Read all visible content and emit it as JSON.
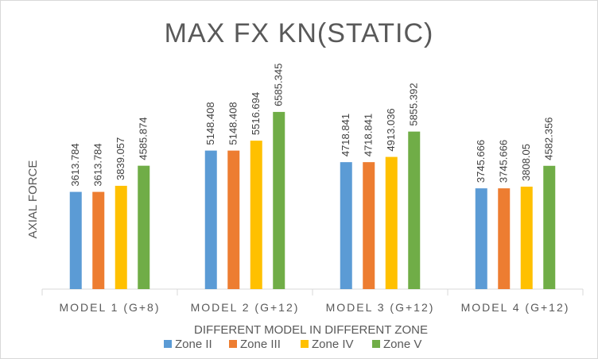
{
  "chart_data": {
    "type": "bar",
    "title": "MAX FX KN(STATIC)",
    "xlabel": "DIFFERENT MODEL IN DIFFERENT ZONE",
    "ylabel": "AXIAL FORCE",
    "categories": [
      "MODEL 1 (G+8)",
      "MODEL 2 (G+12)",
      "MODEL 3 (G+12)",
      "MODEL 4 (G+12)"
    ],
    "series": [
      {
        "name": "Zone II",
        "color": "#5b9bd5",
        "values": [
          "3613.784",
          "5148.408",
          "4718.841",
          "3745.666"
        ]
      },
      {
        "name": "Zone III",
        "color": "#ed7d31",
        "values": [
          "3613.784",
          "5148.408",
          "4718.841",
          "3745.666"
        ]
      },
      {
        "name": "Zone IV",
        "color": "#ffc000",
        "values": [
          "3839.057",
          "5516.694",
          "4913.036",
          "3808.05"
        ]
      },
      {
        "name": "Zone V",
        "color": "#70ad47",
        "values": [
          "4585.874",
          "6585.345",
          "5855.392",
          "4582.356"
        ]
      }
    ],
    "ylim": [
      0,
      8000
    ],
    "grid": false,
    "legend_position": "bottom",
    "category_separators": true
  }
}
